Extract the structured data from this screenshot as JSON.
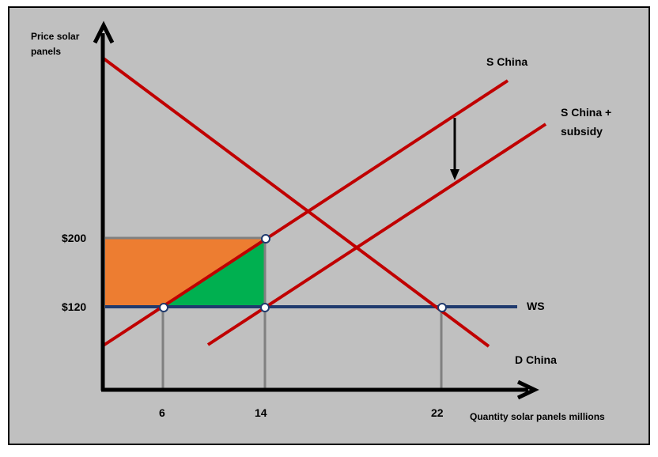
{
  "axes": {
    "y_label_line1": "Price solar",
    "y_label_line2": "panels",
    "x_label": "Quantity solar panels millions"
  },
  "curves": {
    "s_china": "S China",
    "s_china_subsidy_line1": "S China +",
    "s_china_subsidy_line2": "subsidy",
    "d_china": "D China",
    "ws": "WS"
  },
  "y_ticks": [
    "$200",
    "$120"
  ],
  "x_ticks": [
    "6",
    "14",
    "22"
  ],
  "colors": {
    "background": "#c0c0c0",
    "curve": "#c00000",
    "ws_line": "#1f3a6e",
    "orange_area": "#ed7d31",
    "green_area": "#00b050",
    "guide": "#808080"
  }
}
